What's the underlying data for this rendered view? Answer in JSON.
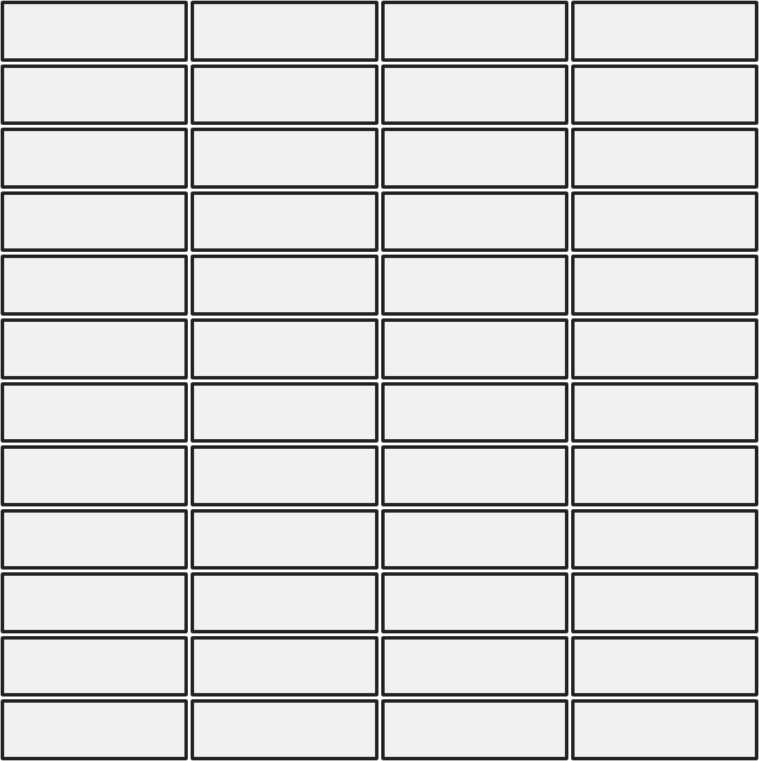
{
  "pattern": {
    "columns": 4,
    "rows": 12,
    "colors": {
      "tile_fill": "#f1f1f1",
      "tile_border": "#222222",
      "grout": "#ffffff"
    }
  }
}
